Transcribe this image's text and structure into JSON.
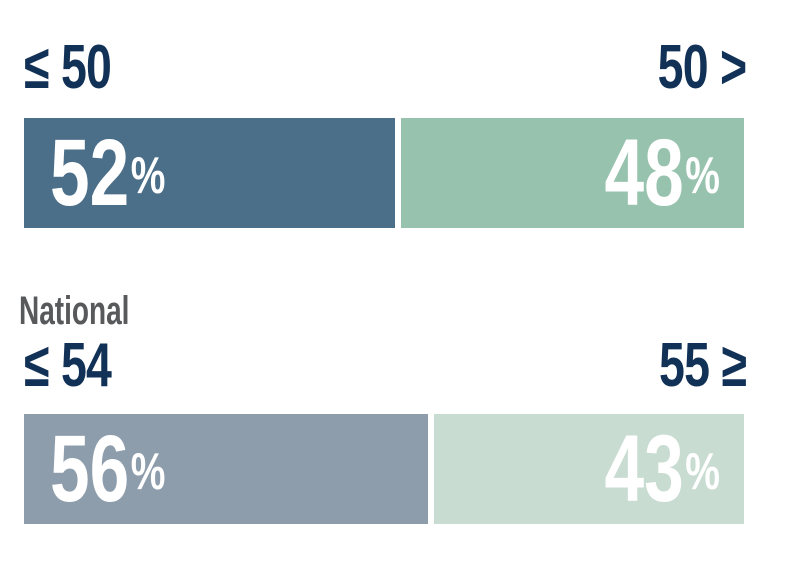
{
  "chart_data": [
    {
      "type": "bar",
      "group_label": "",
      "axis_labels": {
        "left": "≤ 50",
        "right": "50 >"
      },
      "segments": [
        {
          "name": "≤ 50",
          "value": 52,
          "display": "52",
          "unit": "%",
          "color": "#4b6e89"
        },
        {
          "name": "50 >",
          "value": 48,
          "display": "48",
          "unit": "%",
          "color": "#97c2ae"
        }
      ]
    },
    {
      "type": "bar",
      "group_label": "National",
      "axis_labels": {
        "left": "≤ 54",
        "right": "55 ≥"
      },
      "segments": [
        {
          "name": "≤ 54",
          "value": 56,
          "display": "56",
          "unit": "%",
          "color": "#8e9dac"
        },
        {
          "name": "55 ≥",
          "value": 43,
          "display": "43",
          "unit": "%",
          "color": "#c9dcd2"
        }
      ]
    }
  ],
  "colors": {
    "axis_label_text": "#123156",
    "group_label_text": "#58595b",
    "value_text": "#ffffff",
    "background": "#ffffff"
  }
}
